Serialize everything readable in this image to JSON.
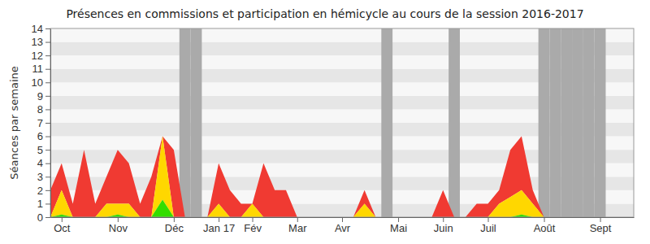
{
  "chart_data": {
    "type": "area",
    "stacked": true,
    "grid": true,
    "title": "Présences en commissions et participation en hémicycle au cours de la session 2016-2017",
    "y_label": "Séances par semaine",
    "categories": [
      null,
      "Oct",
      null,
      null,
      null,
      null,
      "Nov",
      null,
      null,
      null,
      null,
      "Déc",
      null,
      null,
      null,
      "Jan 17",
      null,
      null,
      "Fév",
      null,
      null,
      null,
      "Mar",
      null,
      null,
      null,
      "Avr",
      null,
      null,
      null,
      null,
      "Mai",
      null,
      null,
      null,
      "Juin",
      null,
      null,
      null,
      "Juil",
      null,
      null,
      null,
      null,
      "Août",
      null,
      null,
      null,
      null,
      "Sept",
      null,
      null,
      null
    ],
    "series": [
      {
        "color": "#33dd00",
        "values": [
          0,
          0.2,
          0,
          0,
          0,
          0,
          0.2,
          0,
          0,
          0,
          1.3,
          0,
          0,
          0,
          0,
          0,
          0,
          0,
          0,
          0,
          0,
          0,
          0,
          0,
          0,
          0,
          0,
          0,
          0,
          0,
          0,
          0,
          0,
          0,
          0,
          0,
          0,
          0,
          0,
          0,
          0,
          0,
          0.2,
          0,
          0,
          0,
          0,
          0,
          0,
          0,
          0,
          0,
          0
        ]
      },
      {
        "color": "#ffd700",
        "values": [
          0,
          1.8,
          0,
          0,
          0,
          1,
          0.8,
          1,
          0,
          0,
          4.7,
          0,
          0,
          0,
          0,
          1,
          0,
          0,
          1,
          0,
          0,
          0,
          0,
          0,
          0,
          0,
          0,
          0,
          1,
          0,
          0,
          0,
          0,
          0,
          0,
          0,
          0,
          0,
          0,
          0,
          1,
          1.5,
          1.8,
          1,
          0,
          0,
          0,
          0,
          0,
          0,
          0,
          0,
          0
        ]
      },
      {
        "color": "#f03a32",
        "values": [
          2,
          2,
          1,
          5,
          1,
          2,
          4,
          3,
          1,
          3,
          0,
          5,
          0,
          0,
          0,
          3,
          2,
          1,
          0,
          4,
          2,
          2,
          0,
          0,
          0,
          0,
          0,
          0,
          1,
          0,
          0,
          0,
          0,
          0,
          0,
          2,
          0,
          0,
          1,
          1,
          1,
          3.5,
          4,
          1,
          0,
          0,
          0,
          0,
          0,
          0,
          0,
          0,
          0
        ]
      }
    ],
    "vacation_weeks": [
      12,
      13,
      30,
      36,
      44,
      45,
      46,
      47,
      48,
      49
    ],
    "ylim": [
      0,
      14
    ],
    "yticks": [
      0,
      1,
      2,
      3,
      4,
      5,
      6,
      7,
      8,
      9,
      10,
      11,
      12,
      13,
      14
    ]
  }
}
